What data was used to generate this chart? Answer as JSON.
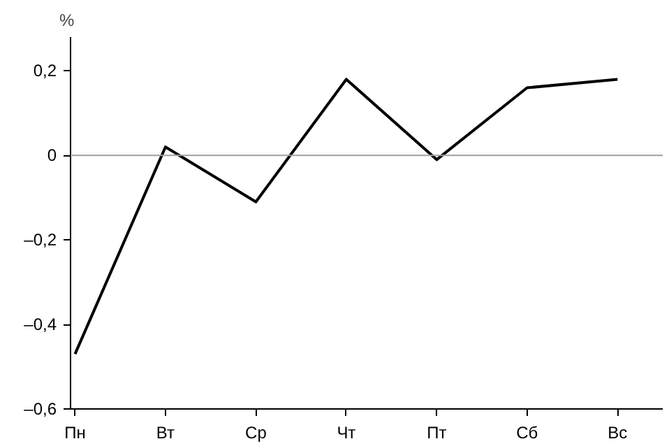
{
  "chart_data": {
    "type": "line",
    "ylabel": "%",
    "categories": [
      "Пн",
      "Вт",
      "Ср",
      "Чт",
      "Пт",
      "Сб",
      "Вс"
    ],
    "series": [
      {
        "color": "#000000",
        "values": [
          -0.47,
          0.02,
          -0.11,
          0.18,
          -0.01,
          0.16,
          0.18
        ]
      }
    ],
    "ylim": [
      -0.6,
      0.28
    ],
    "yticks": [
      {
        "value": -0.6,
        "label": "–0,6"
      },
      {
        "value": -0.4,
        "label": "–0,4"
      },
      {
        "value": -0.2,
        "label": "–0,2"
      },
      0,
      {
        "value": 0.2,
        "label": "0,2"
      }
    ],
    "ref_lines": [
      {
        "axis": "y",
        "value": 0,
        "color": "#a0a0a0"
      }
    ],
    "grid": false,
    "marker": "none",
    "line_style": "solid"
  }
}
